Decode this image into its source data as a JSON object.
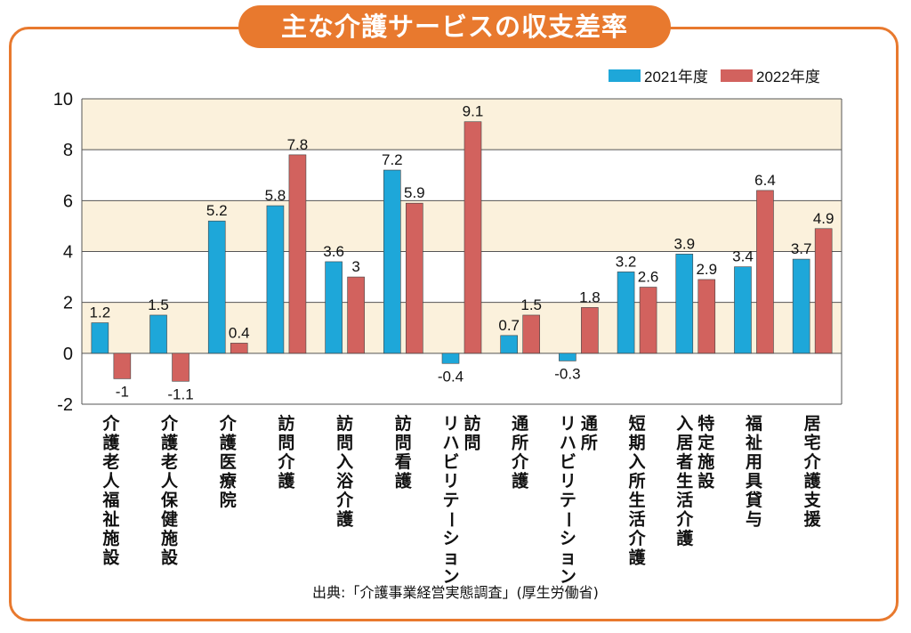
{
  "title": "主な介護サービスの収支差率",
  "source": "出典:「介護事業経営実態調査」(厚生労働省)",
  "colors": {
    "frame": "#e8792e",
    "band": "#fbf1dc",
    "series_2021": "#1ea7d9",
    "series_2022": "#d2625e"
  },
  "chart_data": {
    "type": "bar",
    "title": "主な介護サービスの収支差率",
    "categories": [
      "介護老人福祉施設",
      "介護老人保健施設",
      "介護医療院",
      "訪問介護",
      "訪問入浴介護",
      "訪問看護",
      "訪問\nリハビリテーション",
      "通所介護",
      "通所\nリハビリテーション",
      "短期入所生活介護",
      "特定施設\n入居者生活介護",
      "福祉用具貸与",
      "居宅介護支援"
    ],
    "series": [
      {
        "name": "2021年度",
        "values": [
          1.2,
          1.5,
          5.2,
          5.8,
          3.6,
          7.2,
          -0.4,
          0.7,
          -0.3,
          3.2,
          3.9,
          3.4,
          3.7
        ]
      },
      {
        "name": "2022年度",
        "values": [
          -1,
          -1.1,
          0.4,
          7.8,
          3,
          5.9,
          9.1,
          1.5,
          1.8,
          2.6,
          2.9,
          6.4,
          4.9
        ]
      }
    ],
    "value_labels_2021": [
      "1.2",
      "1.5",
      "5.2",
      "5.8",
      "3.6",
      "7.2",
      "-0.4",
      "0.7",
      "-0.3",
      "3.2",
      "3.9",
      "3.4",
      "3.7"
    ],
    "value_labels_2022": [
      "-1",
      "-1.1",
      "0.4",
      "7.8",
      "3",
      "5.9",
      "9.1",
      "1.5",
      "1.8",
      "2.6",
      "2.9",
      "6.4",
      "4.9"
    ],
    "y_ticks": [
      -2,
      0,
      2,
      4,
      6,
      8,
      10
    ],
    "ylim": [
      -2,
      10
    ],
    "grid": true,
    "legend_position": "top-right"
  }
}
